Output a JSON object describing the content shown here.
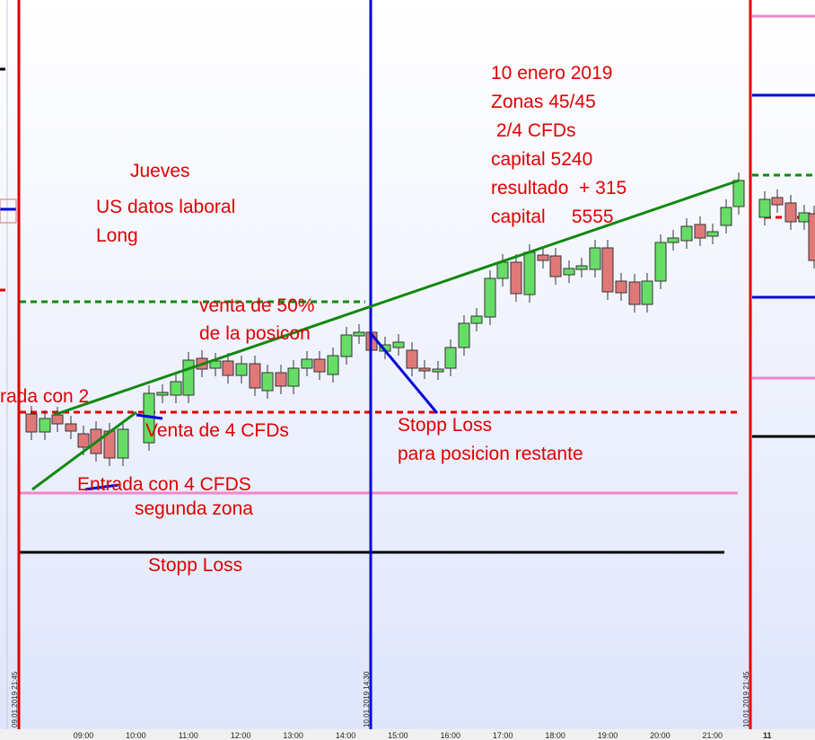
{
  "annotations": [
    {
      "text": "Jueves"
    },
    {
      "text": "US datos laboral"
    },
    {
      "text": "Long"
    },
    {
      "text": "venta de  50%"
    },
    {
      "text": "de la posicon"
    },
    {
      "text": "rada con 2"
    },
    {
      "text": "Venta de 4 CFDs"
    },
    {
      "text": "Entrada con 4 CFDS"
    },
    {
      "text": "segunda zona"
    },
    {
      "text": "Stopp Loss"
    },
    {
      "text": "Stopp Loss"
    },
    {
      "text": "para posicion restante"
    },
    {
      "text": "10 enero 2019"
    },
    {
      "text": "Zonas 45/45"
    },
    {
      "text": " 2/4 CFDs"
    },
    {
      "text": "capital 5240"
    },
    {
      "text": "resultado  + 315"
    },
    {
      "text": "capital     5555"
    }
  ],
  "time_labels": [
    "09:00",
    "10:00",
    "11:00",
    "12:00",
    "13:00",
    "14:00",
    "15:00",
    "16:00",
    "17:00",
    "18:00",
    "19:00",
    "20:00",
    "21:00"
  ],
  "date_markers": [
    "09.01.2019 21:45",
    "10.01.2019 14:30",
    "10.01.2019 21:45"
  ],
  "day_label": "11"
}
